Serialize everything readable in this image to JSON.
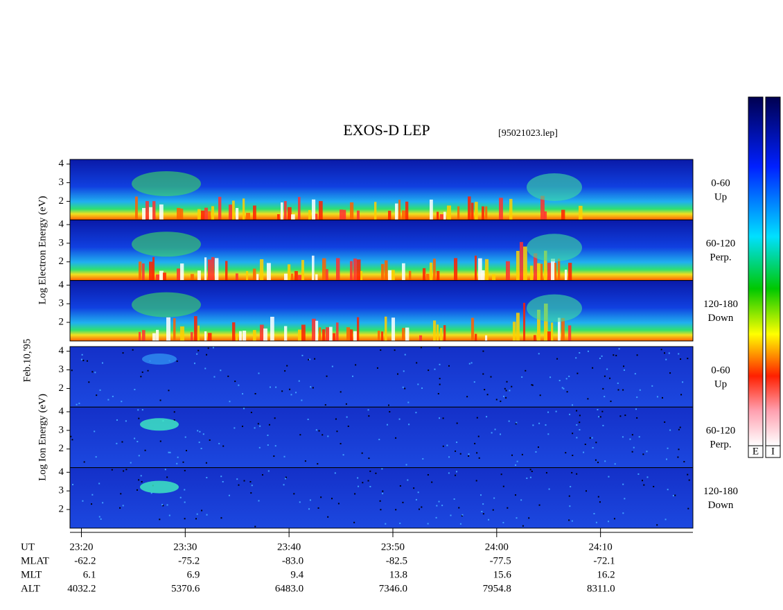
{
  "chart_data": {
    "type": "spectrogram",
    "title": "EXOS-D LEP",
    "file_label": "[95021023.lep]",
    "date_label": "Feb.10,'95",
    "xlim": [
      18.9,
      78.9
    ],
    "xticks": [
      {
        "value": 20,
        "label": "23:20"
      },
      {
        "value": 30,
        "label": "23:30"
      },
      {
        "value": 40,
        "label": "23:40"
      },
      {
        "value": 50,
        "label": "23:50"
      },
      {
        "value": 60,
        "label": "24:00"
      },
      {
        "value": 70,
        "label": "24:10"
      }
    ],
    "ylim": [
      1,
      4.25
    ],
    "yticks": [
      2,
      3,
      4
    ],
    "groups": [
      {
        "ylabel": "Log  Electron  Energy  (eV)",
        "panels": [
          {
            "label": [
              "0-60",
              "Up"
            ]
          },
          {
            "label": [
              "60-120",
              "Perp."
            ]
          },
          {
            "label": [
              "120-180",
              "Down"
            ]
          }
        ]
      },
      {
        "ylabel": "Log  Ion  Energy  (eV)",
        "panels": [
          {
            "label": [
              "0-60",
              "Up"
            ]
          },
          {
            "label": [
              "60-120",
              "Perp."
            ]
          },
          {
            "label": [
              "120-180",
              "Down"
            ]
          }
        ]
      }
    ],
    "colorbar_labels": [
      "E",
      "I"
    ],
    "time_row_name": "UT",
    "orbit_rows": [
      {
        "name": "MLAT",
        "values": [
          "-62.2",
          "-75.2",
          "-83.0",
          "-82.5",
          "-77.5",
          "-72.1"
        ]
      },
      {
        "name": "MLT",
        "values": [
          "6.1",
          "6.9",
          "9.4",
          "13.8",
          "15.6",
          "16.2"
        ]
      },
      {
        "name": "ALT",
        "values": [
          "4032.2",
          "5370.6",
          "6483.0",
          "7346.0",
          "7954.8",
          "8311.0"
        ]
      }
    ]
  }
}
